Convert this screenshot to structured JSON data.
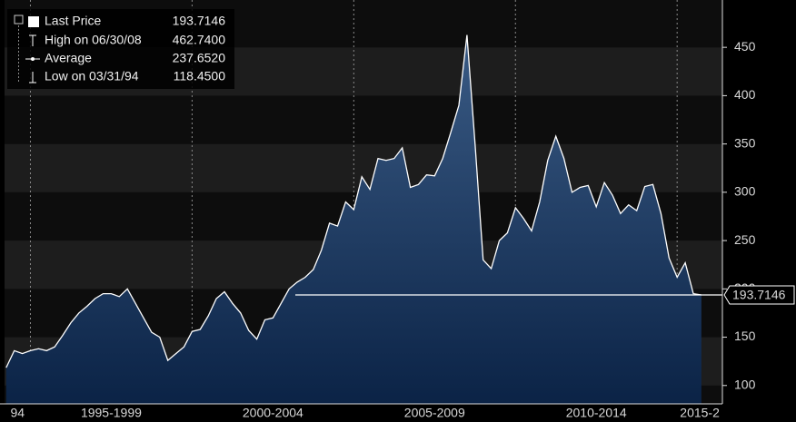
{
  "chart_data": {
    "type": "area",
    "x": [
      1994.25,
      1994.5,
      1994.75,
      1995,
      1995.25,
      1995.5,
      1995.75,
      1996,
      1996.25,
      1996.5,
      1996.75,
      1997,
      1997.25,
      1997.5,
      1997.75,
      1998,
      1998.25,
      1998.5,
      1998.75,
      1999,
      1999.25,
      1999.5,
      1999.75,
      2000,
      2000.25,
      2000.5,
      2000.75,
      2001,
      2001.25,
      2001.5,
      2001.75,
      2002,
      2002.25,
      2002.5,
      2002.75,
      2003,
      2003.25,
      2003.5,
      2003.75,
      2004,
      2004.25,
      2004.5,
      2004.75,
      2005,
      2005.25,
      2005.5,
      2005.75,
      2006,
      2006.25,
      2006.5,
      2006.75,
      2007,
      2007.25,
      2007.5,
      2007.75,
      2008,
      2008.25,
      2008.5,
      2008.75,
      2009,
      2009.25,
      2009.5,
      2009.75,
      2010,
      2010.25,
      2010.5,
      2010.75,
      2011,
      2011.25,
      2011.5,
      2011.75,
      2012,
      2012.25,
      2012.5,
      2012.75,
      2013,
      2013.25,
      2013.5,
      2013.75,
      2014,
      2014.25,
      2014.5,
      2014.75,
      2015,
      2015.25,
      2015.5,
      2015.75
    ],
    "series": [
      {
        "color": "#ffffff",
        "values": [
          118.45,
          136,
          133,
          136,
          138,
          136,
          140,
          152,
          165,
          175,
          182,
          190,
          195,
          195,
          192,
          200,
          185,
          170,
          155,
          150,
          126,
          133,
          140,
          156,
          158,
          172,
          190,
          197,
          185,
          175,
          157,
          148,
          168,
          170,
          185,
          200,
          207,
          212,
          220,
          240,
          268,
          265,
          290,
          282,
          316,
          303,
          335,
          333,
          335,
          346,
          305,
          308,
          318,
          317,
          335,
          362,
          390,
          462.74,
          350,
          230,
          221,
          250,
          258,
          284,
          273,
          260,
          290,
          333,
          358,
          335,
          300,
          305,
          307,
          285,
          310,
          297,
          278,
          287,
          281,
          306,
          308,
          278,
          232,
          212,
          227,
          195,
          193.7146
        ]
      }
    ],
    "xlim": [
      1994.2,
      2016.4
    ],
    "xticks": [
      {
        "value": 1994,
        "label": "94"
      },
      {
        "value": 1995,
        "label": "1995-1999"
      },
      {
        "value": 2000,
        "label": "2000-2004"
      },
      {
        "value": 2005,
        "label": "2005-2009"
      },
      {
        "value": 2010,
        "label": "2010-2014"
      },
      {
        "value": 2015,
        "label": "2015-2"
      }
    ],
    "ylim": [
      81,
      499
    ],
    "yticks": [
      100,
      150,
      200,
      250,
      300,
      350,
      400,
      450
    ],
    "stats": {
      "labels": [
        "Last Price",
        "High on 06/30/08",
        "Average",
        "Low on 03/31/94"
      ],
      "values": [
        193.7146,
        462.74,
        237.652,
        118.45
      ],
      "value_labels": [
        "193.7146",
        "462.7400",
        "237.6520",
        "118.4500"
      ]
    }
  }
}
